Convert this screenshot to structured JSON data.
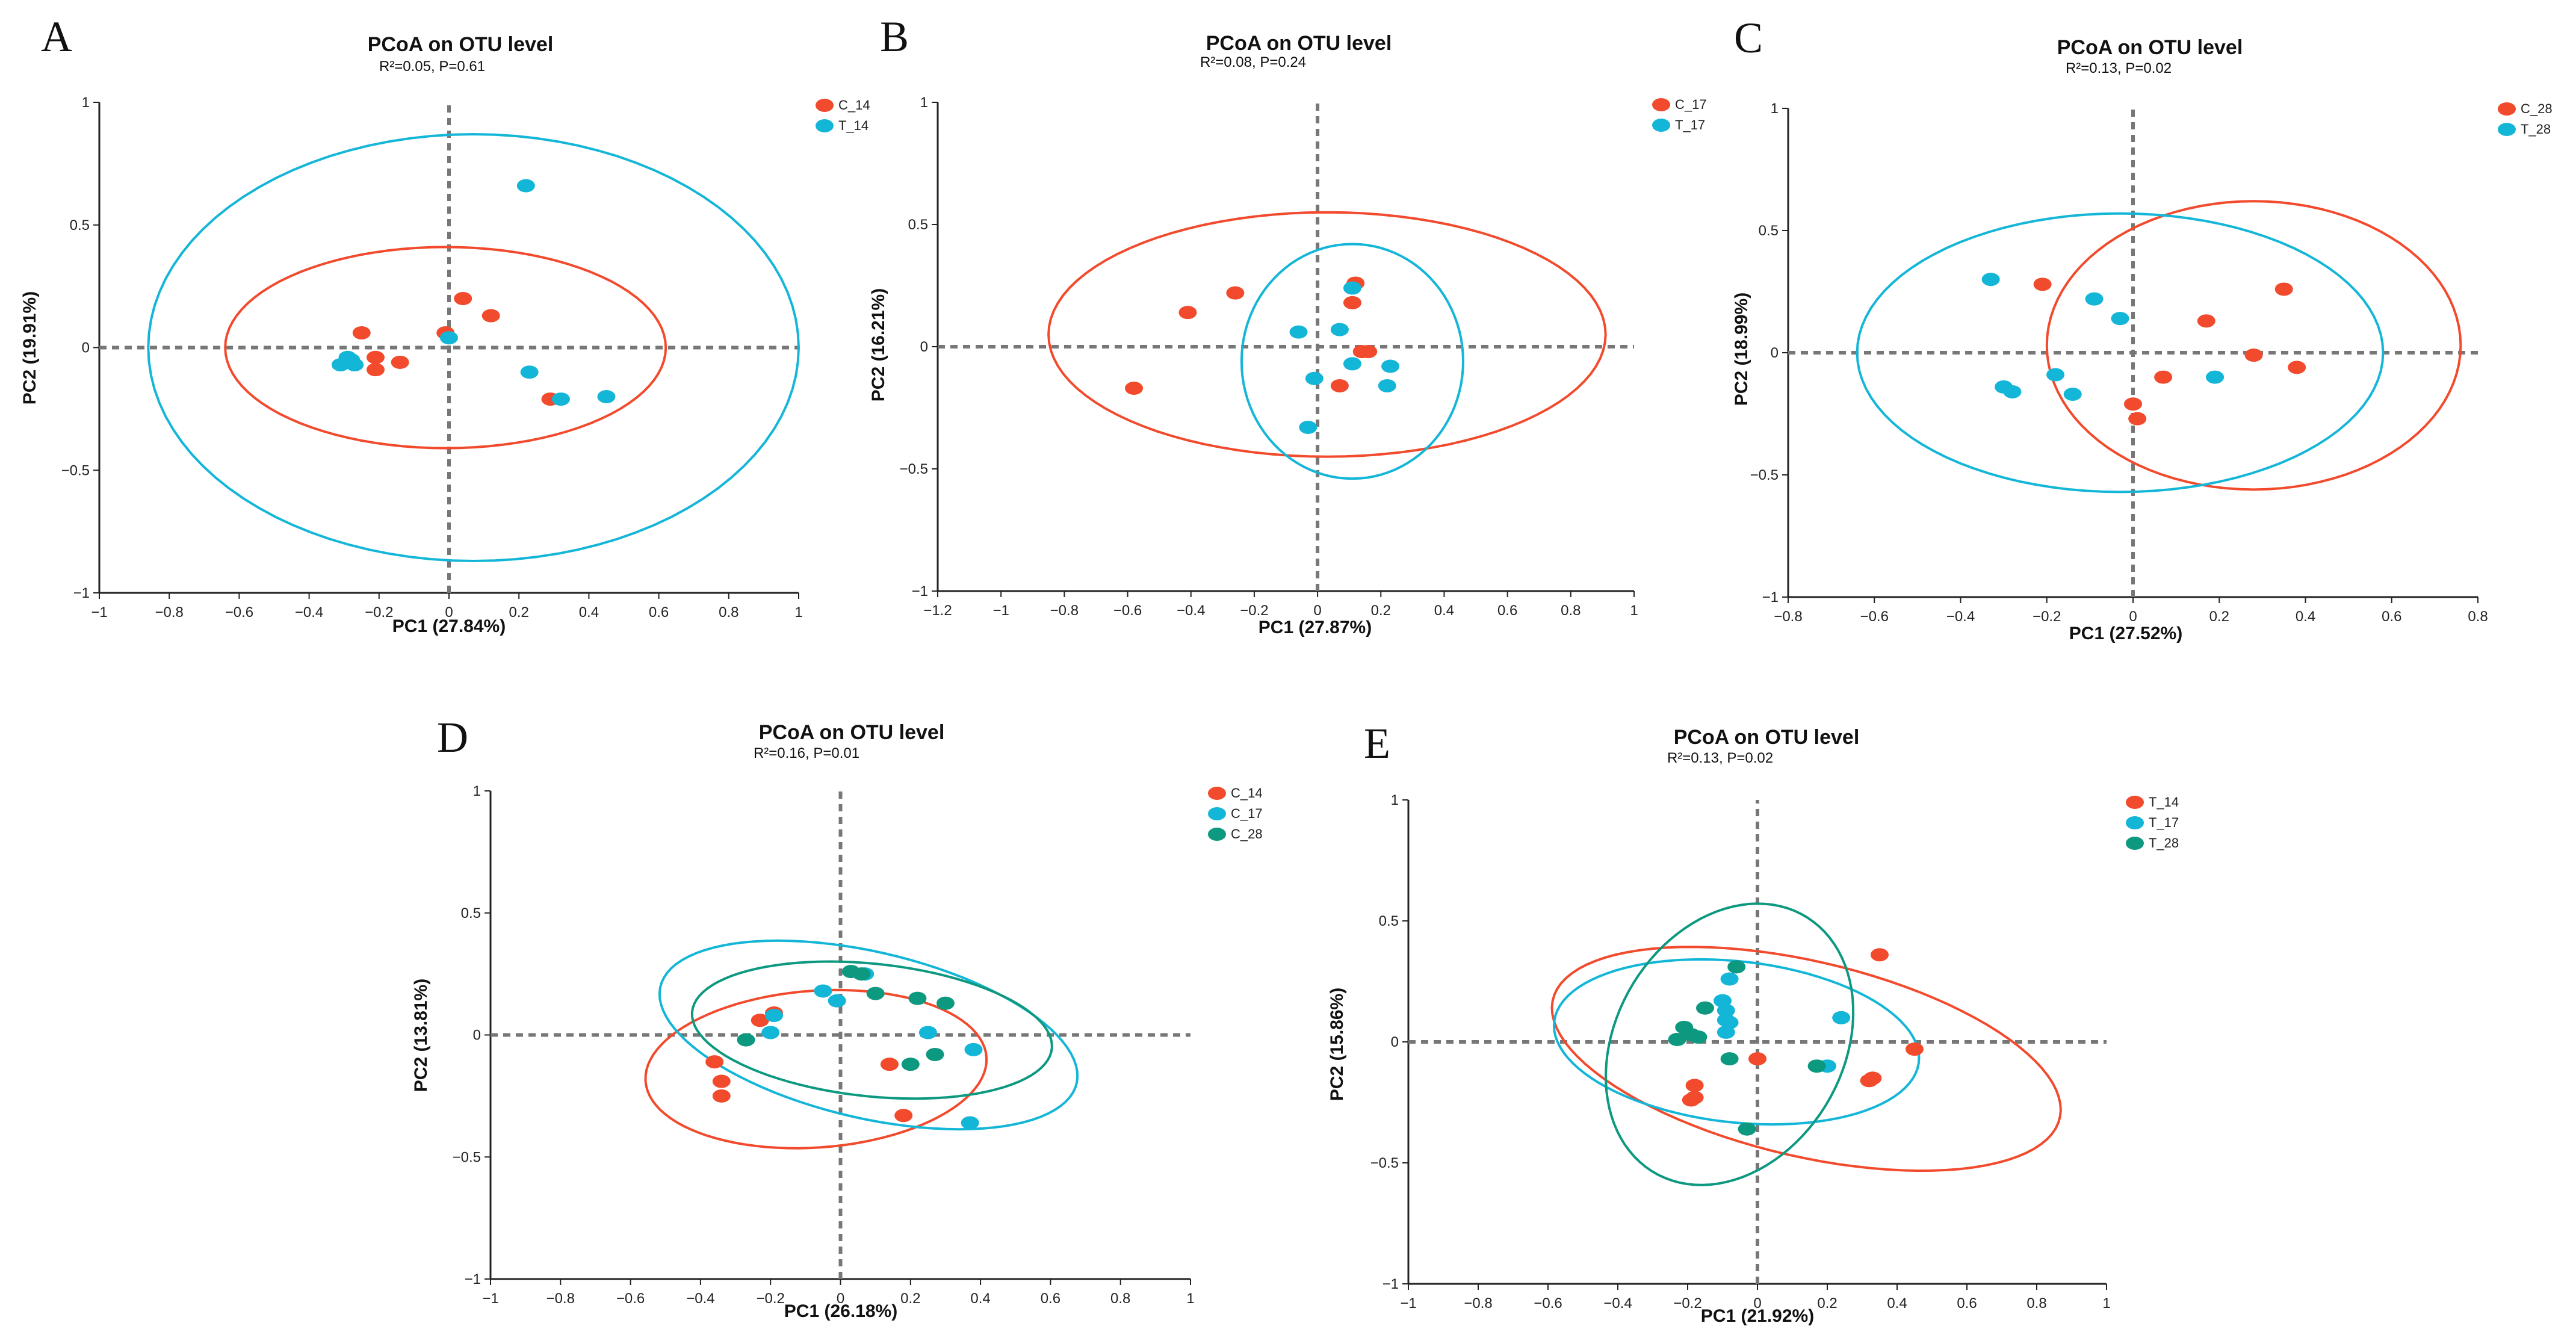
{
  "colors": {
    "red": "#f24a2d",
    "cyan": "#14b6d8",
    "teal": "#0d9880"
  },
  "chart_data": [
    {
      "panel": "A",
      "type": "scatter",
      "title": "PCoA on OTU level",
      "subtitle": "R²=0.05, P=0.61",
      "xlabel": "PC1 (27.84%)",
      "ylabel": "PC2 (19.91%)",
      "xlim": [
        -1,
        1
      ],
      "ylim": [
        -1,
        1
      ],
      "xticks": [
        -1,
        -0.8,
        -0.6,
        -0.4,
        -0.2,
        0,
        0.2,
        0.4,
        0.6,
        0.8,
        1
      ],
      "xtick_labels": [
        "−1",
        "−0.8",
        "−0.6",
        "−0.4",
        "−0.2",
        "0",
        "0.2",
        "0.4",
        "0.6",
        "0.8",
        "1"
      ],
      "yticks": [
        -1,
        -0.5,
        0,
        0.5,
        1
      ],
      "ytick_labels": [
        "−1",
        "−0.5",
        "0",
        "0.5",
        "1"
      ],
      "legend": "top-right",
      "series": [
        {
          "name": "C_14",
          "color": "#f24a2d",
          "x": [
            -0.25,
            -0.21,
            -0.21,
            -0.14,
            -0.01,
            0.04,
            0.12,
            0.29
          ],
          "y": [
            0.06,
            -0.04,
            -0.09,
            -0.06,
            0.06,
            0.2,
            0.13,
            -0.21
          ],
          "ellipse": {
            "cx": -0.01,
            "cy": 0.0,
            "rx": 0.63,
            "ry": 0.41,
            "angle": 0
          }
        },
        {
          "name": "T_14",
          "color": "#14b6d8",
          "x": [
            -0.31,
            -0.29,
            -0.28,
            -0.27,
            0.0,
            0.22,
            0.23,
            0.32,
            0.45
          ],
          "y": [
            -0.07,
            -0.04,
            -0.05,
            -0.07,
            0.04,
            0.66,
            -0.1,
            -0.21,
            -0.2
          ],
          "ellipse": {
            "cx": 0.07,
            "cy": 0.0,
            "rx": 0.93,
            "ry": 0.87,
            "angle": 0
          }
        }
      ]
    },
    {
      "panel": "B",
      "type": "scatter",
      "title": "PCoA on OTU level",
      "subtitle": "R²=0.08, P=0.24",
      "xlabel": "PC1 (27.87%)",
      "ylabel": "PC2 (16.21%)",
      "xlim": [
        -1.2,
        1
      ],
      "ylim": [
        -1,
        1
      ],
      "xticks": [
        -1.2,
        -1,
        -0.8,
        -0.6,
        -0.4,
        -0.2,
        0,
        0.2,
        0.4,
        0.6,
        0.8,
        1
      ],
      "xtick_labels": [
        "−1.2",
        "−1",
        "−0.8",
        "−0.6",
        "−0.4",
        "−0.2",
        "0",
        "0.2",
        "0.4",
        "0.6",
        "0.8",
        "1"
      ],
      "yticks": [
        -1,
        -0.5,
        0,
        0.5,
        1
      ],
      "ytick_labels": [
        "−1",
        "−0.5",
        "0",
        "0.5",
        "1"
      ],
      "legend": "top-right",
      "series": [
        {
          "name": "C_17",
          "color": "#f24a2d",
          "x": [
            -0.58,
            -0.41,
            -0.26,
            0.07,
            0.11,
            0.12,
            0.14,
            0.16
          ],
          "y": [
            -0.17,
            0.14,
            0.22,
            -0.16,
            0.18,
            0.26,
            -0.02,
            -0.02
          ],
          "ellipse": {
            "cx": 0.03,
            "cy": 0.05,
            "rx": 0.88,
            "ry": 0.5,
            "angle": 0
          }
        },
        {
          "name": "T_17",
          "color": "#14b6d8",
          "x": [
            -0.06,
            -0.03,
            -0.01,
            0.07,
            0.11,
            0.11,
            0.22,
            0.23
          ],
          "y": [
            0.06,
            -0.33,
            -0.13,
            0.07,
            0.24,
            -0.07,
            -0.16,
            -0.08
          ],
          "ellipse": {
            "cx": 0.11,
            "cy": -0.06,
            "rx": 0.35,
            "ry": 0.48,
            "angle": 0
          }
        }
      ]
    },
    {
      "panel": "C",
      "type": "scatter",
      "title": "PCoA on OTU level",
      "subtitle": "R²=0.13, P=0.02",
      "xlabel": "PC1 (27.52%)",
      "ylabel": "PC2 (18.99%)",
      "xlim": [
        -0.8,
        0.8
      ],
      "ylim": [
        -1,
        1
      ],
      "xticks": [
        -0.8,
        -0.6,
        -0.4,
        -0.2,
        0,
        0.2,
        0.4,
        0.6,
        0.8
      ],
      "xtick_labels": [
        "−0.8",
        "−0.6",
        "−0.4",
        "−0.2",
        "0",
        "0.2",
        "0.4",
        "0.6",
        "0.8"
      ],
      "yticks": [
        -1,
        -0.5,
        0,
        0.5,
        1
      ],
      "ytick_labels": [
        "−1",
        "−0.5",
        "0",
        "0.5",
        "1"
      ],
      "legend": "top-right",
      "series": [
        {
          "name": "C_28",
          "color": "#f24a2d",
          "x": [
            -0.21,
            0.0,
            0.01,
            0.07,
            0.17,
            0.28,
            0.35,
            0.38
          ],
          "y": [
            0.28,
            -0.21,
            -0.27,
            -0.1,
            0.13,
            -0.01,
            0.26,
            -0.06
          ],
          "ellipse": {
            "cx": 0.28,
            "cy": 0.03,
            "rx": 0.48,
            "ry": 0.59,
            "angle": 0
          }
        },
        {
          "name": "T_28",
          "color": "#14b6d8",
          "x": [
            -0.33,
            -0.3,
            -0.28,
            -0.18,
            -0.14,
            -0.09,
            -0.03,
            0.19
          ],
          "y": [
            0.3,
            -0.14,
            -0.16,
            -0.09,
            -0.17,
            0.22,
            0.14,
            -0.1
          ],
          "ellipse": {
            "cx": -0.03,
            "cy": 0.0,
            "rx": 0.61,
            "ry": 0.57,
            "angle": 0
          }
        }
      ]
    },
    {
      "panel": "D",
      "type": "scatter",
      "title": "PCoA on OTU level",
      "subtitle": "R²=0.16, P=0.01",
      "xlabel": "PC1 (26.18%)",
      "ylabel": "PC2 (13.81%)",
      "xlim": [
        -1,
        1
      ],
      "ylim": [
        -1,
        1
      ],
      "xticks": [
        -1,
        -0.8,
        -0.6,
        -0.4,
        -0.2,
        0,
        0.2,
        0.4,
        0.6,
        0.8,
        1
      ],
      "xtick_labels": [
        "−1",
        "−0.8",
        "−0.6",
        "−0.4",
        "−0.2",
        "0",
        "0.2",
        "0.4",
        "0.6",
        "0.8",
        "1"
      ],
      "yticks": [
        -1,
        -0.5,
        0,
        0.5,
        1
      ],
      "ytick_labels": [
        "−1",
        "−0.5",
        "0",
        "0.5",
        "1"
      ],
      "legend": "top-right",
      "series": [
        {
          "name": "C_14",
          "color": "#f24a2d",
          "x": [
            -0.36,
            -0.34,
            -0.34,
            -0.23,
            -0.19,
            0.14,
            0.18
          ],
          "y": [
            -0.11,
            -0.19,
            -0.25,
            0.06,
            0.09,
            -0.12,
            -0.33
          ],
          "ellipse": {
            "cx": -0.07,
            "cy": -0.14,
            "rx": 0.49,
            "ry": 0.32,
            "angle": 8
          }
        },
        {
          "name": "C_17",
          "color": "#14b6d8",
          "x": [
            -0.2,
            -0.19,
            -0.05,
            -0.01,
            0.07,
            0.25,
            0.37,
            0.38
          ],
          "y": [
            0.01,
            0.08,
            0.18,
            0.14,
            0.25,
            0.01,
            -0.36,
            -0.06
          ],
          "ellipse": {
            "cx": 0.08,
            "cy": 0.0,
            "rx": 0.63,
            "ry": 0.33,
            "angle": -22
          }
        },
        {
          "name": "C_28",
          "color": "#0d9880",
          "x": [
            -0.27,
            0.03,
            0.06,
            0.1,
            0.2,
            0.22,
            0.27,
            0.3
          ],
          "y": [
            -0.02,
            0.26,
            0.25,
            0.17,
            -0.12,
            0.15,
            -0.08,
            0.13
          ],
          "ellipse": {
            "cx": 0.09,
            "cy": 0.02,
            "rx": 0.52,
            "ry": 0.27,
            "angle": -10
          }
        }
      ]
    },
    {
      "panel": "E",
      "type": "scatter",
      "title": "PCoA on OTU level",
      "subtitle": "R²=0.13, P=0.02",
      "xlabel": "PC1 (21.92%)",
      "ylabel": "PC2 (15.86%)",
      "xlim": [
        -1,
        1
      ],
      "ylim": [
        -1,
        1
      ],
      "xticks": [
        -1,
        -0.8,
        -0.6,
        -0.4,
        -0.2,
        0,
        0.2,
        0.4,
        0.6,
        0.8,
        1
      ],
      "xtick_labels": [
        "−1",
        "−0.8",
        "−0.6",
        "−0.4",
        "−0.2",
        "0",
        "0.2",
        "0.4",
        "0.6",
        "0.8",
        "1"
      ],
      "yticks": [
        -1,
        -0.5,
        0,
        0.5,
        1
      ],
      "ytick_labels": [
        "−1",
        "−0.5",
        "0",
        "0.5",
        "1"
      ],
      "legend": "top-right",
      "series": [
        {
          "name": "T_14",
          "color": "#f24a2d",
          "x": [
            -0.19,
            -0.18,
            -0.18,
            0.0,
            0.32,
            0.33,
            0.35,
            0.45
          ],
          "y": [
            -0.24,
            -0.23,
            -0.18,
            -0.07,
            -0.16,
            -0.15,
            0.36,
            -0.03
          ],
          "ellipse": {
            "cx": 0.14,
            "cy": -0.07,
            "rx": 0.77,
            "ry": 0.39,
            "angle": -22
          }
        },
        {
          "name": "T_17",
          "color": "#14b6d8",
          "x": [
            -0.1,
            -0.09,
            -0.09,
            -0.09,
            -0.08,
            -0.08,
            0.2,
            0.24
          ],
          "y": [
            0.17,
            0.13,
            0.09,
            0.04,
            0.26,
            0.08,
            -0.1,
            0.1
          ],
          "ellipse": {
            "cx": -0.06,
            "cy": 0.0,
            "rx": 0.53,
            "ry": 0.33,
            "angle": -12
          }
        },
        {
          "name": "T_28",
          "color": "#0d9880",
          "x": [
            -0.23,
            -0.21,
            -0.19,
            -0.17,
            -0.15,
            -0.08,
            -0.06,
            -0.03,
            0.17
          ],
          "y": [
            0.01,
            0.06,
            0.03,
            0.02,
            0.14,
            -0.07,
            0.31,
            -0.36,
            -0.1
          ],
          "ellipse": {
            "cx": -0.08,
            "cy": -0.01,
            "rx": 0.34,
            "ry": 0.59,
            "angle": -12
          }
        }
      ]
    }
  ]
}
